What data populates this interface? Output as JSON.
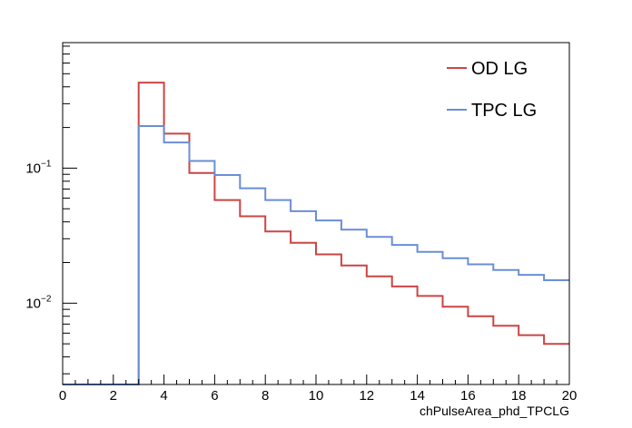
{
  "chart_data": {
    "type": "histogram",
    "xlabel": "chPulseArea_phd_TPCLG",
    "ylabel": "",
    "xlim": [
      0,
      20
    ],
    "ylim": [
      0.0025,
      0.85
    ],
    "y_scale": "log",
    "legend_position": "top-right",
    "x_ticks": [
      {
        "value": 0,
        "label": "0"
      },
      {
        "value": 2,
        "label": "2"
      },
      {
        "value": 4,
        "label": "4"
      },
      {
        "value": 6,
        "label": "6"
      },
      {
        "value": 8,
        "label": "8"
      },
      {
        "value": 10,
        "label": "10"
      },
      {
        "value": 12,
        "label": "12"
      },
      {
        "value": 14,
        "label": "14"
      },
      {
        "value": 16,
        "label": "16"
      },
      {
        "value": 18,
        "label": "18"
      },
      {
        "value": 20,
        "label": "20"
      }
    ],
    "y_ticks": [
      {
        "value": 0.1,
        "base": "10",
        "exp": "−1"
      },
      {
        "value": 0.01,
        "base": "10",
        "exp": "−2"
      }
    ],
    "bin_edges": [
      0,
      1,
      2,
      3,
      4,
      5,
      6,
      7,
      8,
      9,
      10,
      11,
      12,
      13,
      14,
      15,
      16,
      17,
      18,
      19,
      20
    ],
    "series": [
      {
        "name": "OD LG",
        "color": "#cc4444",
        "values": [
          0.0025,
          0.0025,
          0.0025,
          0.43,
          0.18,
          0.092,
          0.058,
          0.044,
          0.034,
          0.028,
          0.023,
          0.019,
          0.0158,
          0.0133,
          0.0113,
          0.0094,
          0.008,
          0.0068,
          0.0058,
          0.005
        ]
      },
      {
        "name": "TPC LG",
        "color": "#6a8ed6",
        "values": [
          0.0025,
          0.0025,
          0.0025,
          0.205,
          0.155,
          0.113,
          0.089,
          0.071,
          0.058,
          0.048,
          0.041,
          0.035,
          0.031,
          0.027,
          0.024,
          0.0215,
          0.0194,
          0.0176,
          0.0162,
          0.0148
        ]
      }
    ]
  }
}
